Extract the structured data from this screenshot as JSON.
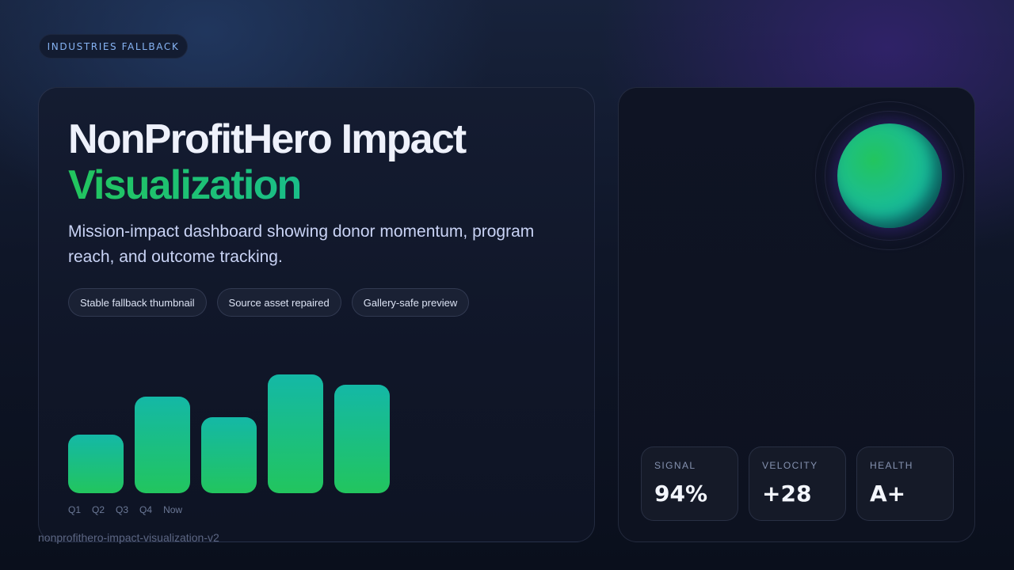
{
  "badge": {
    "label": "INDUSTRIES FALLBACK"
  },
  "hero": {
    "title_line1": "NonProfitHero Impact",
    "title_line2": "Visualization",
    "description": "Mission-impact dashboard showing donor momentum, program reach, and outcome tracking.",
    "chips": [
      "Stable fallback thumbnail",
      "Source asset repaired",
      "Gallery-safe preview"
    ]
  },
  "chart_data": {
    "type": "bar",
    "categories": [
      "Q1",
      "Q2",
      "Q3",
      "Q4",
      "Now"
    ],
    "values": [
      49,
      81,
      64,
      100,
      91
    ],
    "title": "",
    "xlabel": "",
    "ylabel": "",
    "ylim": [
      0,
      100
    ],
    "grid": false,
    "legend": null,
    "colors": {
      "top": "#14b8a6",
      "bottom": "#22c55e"
    }
  },
  "stats": [
    {
      "label": "SIGNAL",
      "value": "94%"
    },
    {
      "label": "VELOCITY",
      "value": "+28"
    },
    {
      "label": "HEALTH",
      "value": "A+"
    }
  ],
  "footer": {
    "slug": "nonprofithero-impact-visualization-v2"
  },
  "colors": {
    "accent_green": "#22c55e",
    "accent_teal": "#14b8a6",
    "badge_text": "#86b3f3",
    "background_dark": "#0a0f1c"
  }
}
